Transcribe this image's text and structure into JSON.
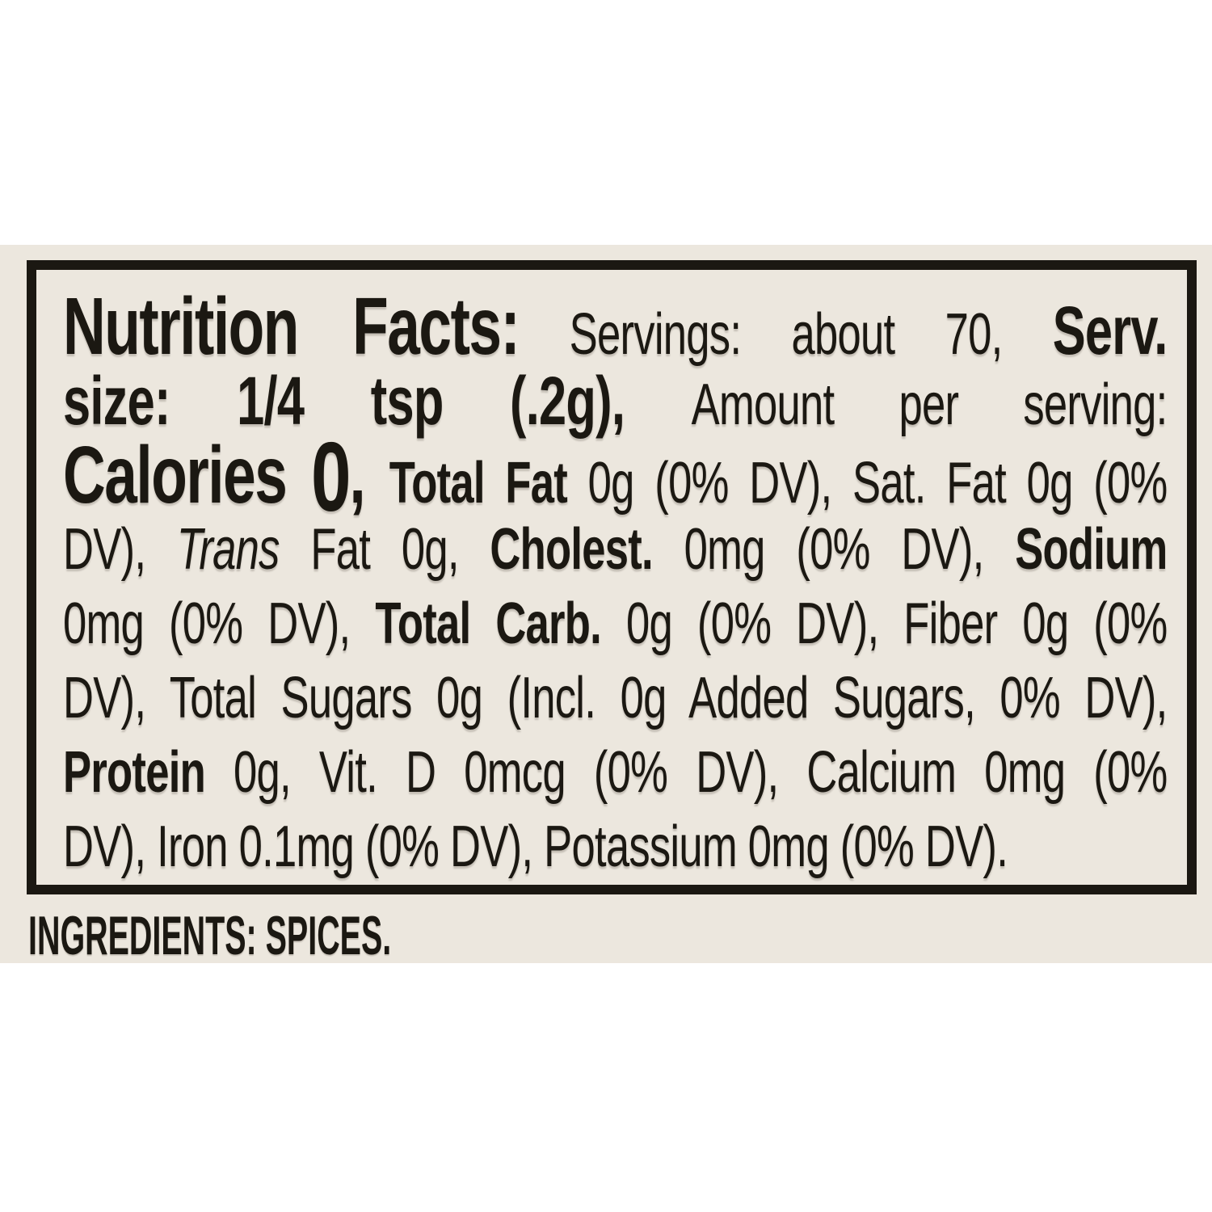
{
  "colors": {
    "page_background": "#ffffff",
    "label_background": "#ece7de",
    "border": "#1b1812",
    "text": "#1b1812"
  },
  "nutrition_panel": {
    "servings": "about 70",
    "serving_size": "1/4 tsp (.2g)",
    "calories": "0",
    "lines": [
      {
        "justify": true,
        "segments": [
          {
            "t": "Nutrition Facts:",
            "s": "heading"
          },
          {
            "t": " Servings: about 70, ",
            "s": "normal"
          },
          {
            "t": "Serv.",
            "s": "subheading"
          }
        ]
      },
      {
        "justify": true,
        "segments": [
          {
            "t": "size: 1/4 tsp (.2g), ",
            "s": "subheading"
          },
          {
            "t": "Amount per serving:",
            "s": "normal"
          }
        ]
      },
      {
        "justify": true,
        "segments": [
          {
            "t": "Calories ",
            "s": "heading"
          },
          {
            "t": "0",
            "s": "calories"
          },
          {
            "t": ", ",
            "s": "heading"
          },
          {
            "t": "Total Fat",
            "s": "bold"
          },
          {
            "t": " 0g (0% DV), Sat. Fat 0g (0%",
            "s": "normal"
          }
        ]
      },
      {
        "justify": true,
        "segments": [
          {
            "t": "DV), ",
            "s": "normal"
          },
          {
            "t": "Trans",
            "s": "italic"
          },
          {
            "t": " Fat 0g, ",
            "s": "normal"
          },
          {
            "t": "Cholest.",
            "s": "bold"
          },
          {
            "t": " 0mg (0% DV), ",
            "s": "normal"
          },
          {
            "t": "Sodium",
            "s": "bold"
          }
        ]
      },
      {
        "justify": true,
        "segments": [
          {
            "t": "0mg (0% DV), ",
            "s": "normal"
          },
          {
            "t": "Total Carb.",
            "s": "bold"
          },
          {
            "t": " 0g (0% DV), Fiber 0g (0%",
            "s": "normal"
          }
        ]
      },
      {
        "justify": true,
        "segments": [
          {
            "t": "DV), Total Sugars 0g (Incl. 0g Added Sugars, 0% DV),",
            "s": "normal"
          }
        ]
      },
      {
        "justify": true,
        "segments": [
          {
            "t": "Protein",
            "s": "bold"
          },
          {
            "t": " 0g, Vit. D 0mcg (0% DV), Calcium 0mg (0%",
            "s": "normal"
          }
        ]
      },
      {
        "justify": false,
        "segments": [
          {
            "t": "DV), Iron 0.1mg (0% DV), Potassium 0mg (0% DV).",
            "s": "normal"
          }
        ]
      }
    ]
  },
  "ingredients": {
    "text": "INGREDIENTS: SPICES."
  }
}
